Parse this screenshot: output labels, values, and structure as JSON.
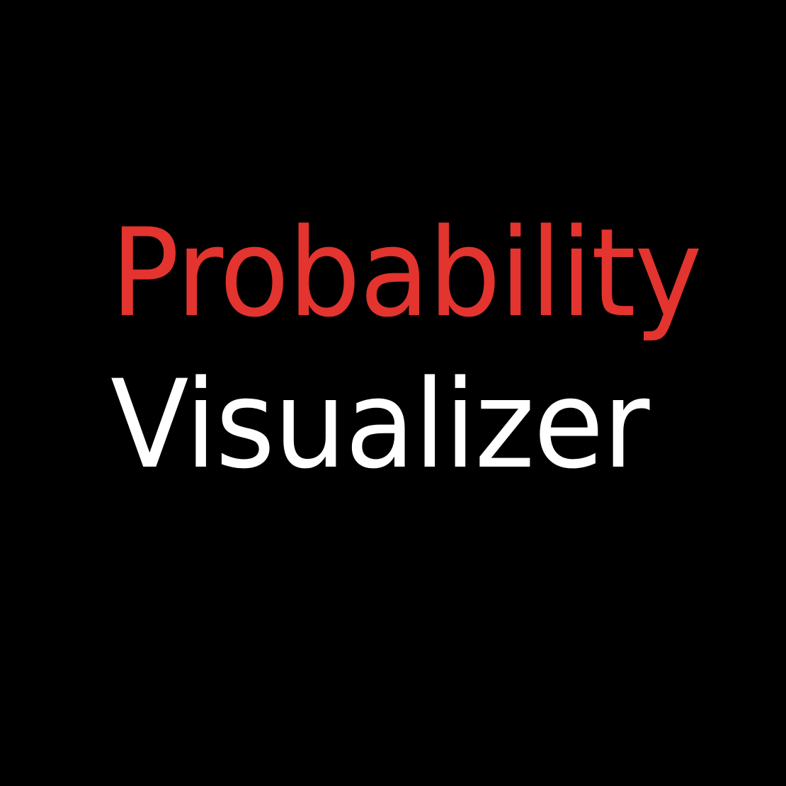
{
  "title": {
    "line1": "Probability",
    "line2": "Visualizer"
  },
  "colors": {
    "background": "#000000",
    "line1": "#e3342f",
    "line2": "#ffffff"
  }
}
